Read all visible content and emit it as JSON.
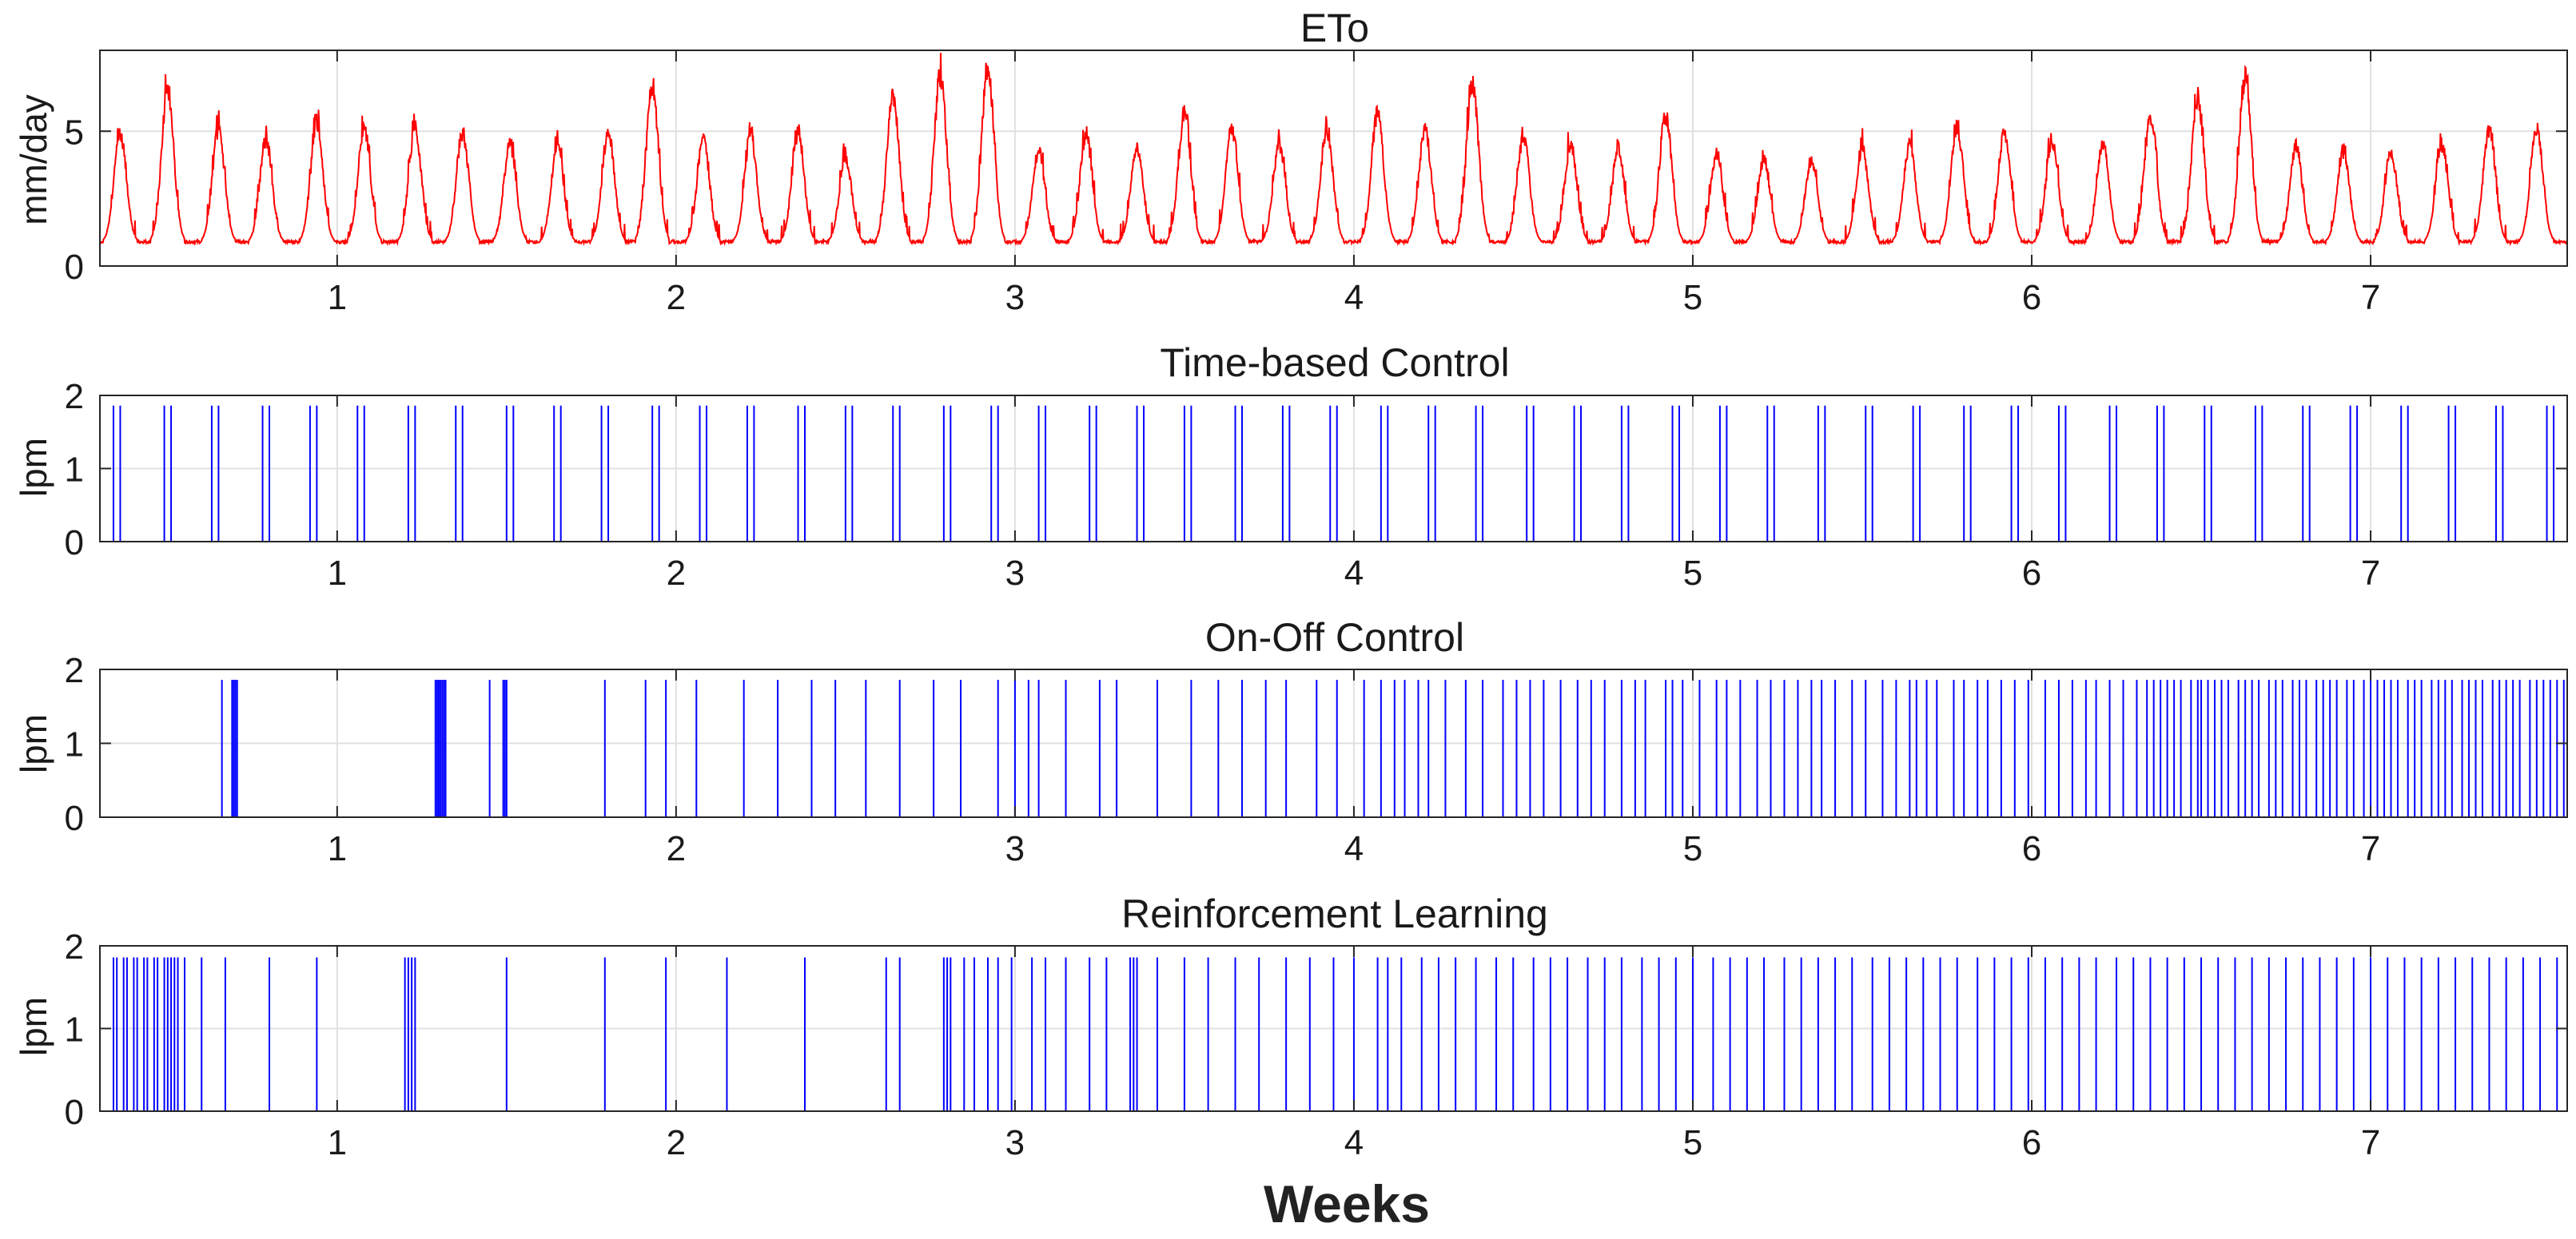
{
  "figure": {
    "xlabel": "Weeks",
    "colors": {
      "eto": "#ff0000",
      "flow": "#0000ff",
      "axis": "#262626",
      "grid": "#e0e0e0"
    }
  },
  "chart_data": [
    {
      "type": "line",
      "title": "ETo",
      "ylabel": "mm/day",
      "xlim": [
        0.3,
        7.58
      ],
      "ylim": [
        0,
        8
      ],
      "xticks": [
        "1",
        "2",
        "3",
        "4",
        "5",
        "6",
        "7"
      ],
      "yticks": [
        "0",
        "5"
      ],
      "grid": true,
      "series": [
        {
          "peak_x": [
            0.36,
            0.5,
            0.65,
            0.79,
            0.94,
            1.08,
            1.23,
            1.37,
            1.51,
            1.65,
            1.8,
            1.93,
            2.08,
            2.22,
            2.36,
            2.5,
            2.64,
            2.78,
            2.92,
            3.07,
            3.21,
            3.36,
            3.5,
            3.64,
            3.78,
            3.92,
            4.07,
            4.21,
            4.35,
            4.5,
            4.64,
            4.78,
            4.92,
            5.07,
            5.21,
            5.35,
            5.5,
            5.64,
            5.78,
            5.92,
            6.06,
            6.21,
            6.35,
            6.49,
            6.63,
            6.78,
            6.92,
            7.06,
            7.21,
            7.35,
            7.49
          ],
          "peak_y": [
            5.2,
            7.0,
            5.4,
            5.0,
            5.7,
            5.5,
            5.5,
            5.3,
            4.8,
            4.8,
            5.3,
            7.1,
            5.0,
            5.2,
            5.3,
            4.3,
            6.8,
            7.6,
            7.9,
            4.6,
            5.2,
            4.7,
            6.0,
            5.4,
            4.8,
            5.4,
            6.0,
            5.4,
            7.2,
            5.1,
            4.8,
            4.6,
            6.0,
            4.4,
            4.2,
            4.2,
            4.6,
            4.8,
            5.5,
            5.3,
            5.0,
            4.8,
            6.0,
            6.7,
            7.5,
            4.7,
            4.5,
            4.5,
            4.8,
            5.4,
            5.5
          ],
          "baseline": 0.9,
          "xs_start": 0.3,
          "xs_end": 7.58
        }
      ]
    },
    {
      "type": "line",
      "title": "Time-based Control",
      "ylabel": "lpm",
      "xlim": [
        0.3,
        7.58
      ],
      "ylim": [
        0,
        2
      ],
      "xticks": [
        "1",
        "2",
        "3",
        "4",
        "5",
        "6",
        "7"
      ],
      "yticks": [
        "0",
        "1",
        "2"
      ],
      "pulse_height": 1.86,
      "pulses_x": [
        0.34,
        0.36,
        0.49,
        0.51,
        0.63,
        0.65,
        0.78,
        0.8,
        0.92,
        0.94,
        1.06,
        1.08,
        1.21,
        1.23,
        1.35,
        1.37,
        1.5,
        1.52,
        1.64,
        1.66,
        1.78,
        1.8,
        1.93,
        1.95,
        2.07,
        2.09,
        2.21,
        2.23,
        2.36,
        2.38,
        2.5,
        2.52,
        2.64,
        2.66,
        2.79,
        2.81,
        2.93,
        2.95,
        3.07,
        3.09,
        3.22,
        3.24,
        3.36,
        3.38,
        3.5,
        3.52,
        3.65,
        3.67,
        3.79,
        3.81,
        3.93,
        3.95,
        4.08,
        4.1,
        4.22,
        4.24,
        4.36,
        4.38,
        4.51,
        4.53,
        4.65,
        4.67,
        4.79,
        4.81,
        4.94,
        4.96,
        5.08,
        5.1,
        5.22,
        5.24,
        5.37,
        5.39,
        5.51,
        5.53,
        5.65,
        5.67,
        5.8,
        5.82,
        5.94,
        5.96,
        6.08,
        6.1,
        6.23,
        6.25,
        6.37,
        6.39,
        6.51,
        6.53,
        6.66,
        6.68,
        6.8,
        6.82,
        6.94,
        6.96,
        7.09,
        7.11,
        7.23,
        7.25,
        7.37,
        7.39,
        7.52,
        7.54
      ]
    },
    {
      "type": "line",
      "title": "On-Off Control",
      "ylabel": "lpm",
      "xlim": [
        0.3,
        7.58
      ],
      "ylim": [
        0,
        2
      ],
      "xticks": [
        "1",
        "2",
        "3",
        "4",
        "5",
        "6",
        "7"
      ],
      "yticks": [
        "0",
        "1",
        "2"
      ],
      "pulse_height": 1.86,
      "pulses_x": [
        0.66,
        0.69,
        0.695,
        0.7,
        0.705,
        1.29,
        1.295,
        1.3,
        1.305,
        1.31,
        1.315,
        1.32,
        1.45,
        1.49,
        1.495,
        1.5,
        1.79,
        1.91,
        1.97,
        2.06,
        2.2,
        2.3,
        2.4,
        2.47,
        2.56,
        2.66,
        2.76,
        2.84,
        2.95,
        3.0,
        3.04,
        3.07,
        3.15,
        3.25,
        3.3,
        3.42,
        3.52,
        3.6,
        3.67,
        3.74,
        3.8,
        3.89,
        3.95,
        4.03,
        4.08,
        4.12,
        4.15,
        4.19,
        4.22,
        4.27,
        4.33,
        4.38,
        4.44,
        4.48,
        4.52,
        4.56,
        4.61,
        4.66,
        4.7,
        4.74,
        4.79,
        4.83,
        4.86,
        4.92,
        4.94,
        4.97,
        5.02,
        5.07,
        5.1,
        5.14,
        5.19,
        5.23,
        5.27,
        5.31,
        5.35,
        5.38,
        5.42,
        5.47,
        5.51,
        5.56,
        5.6,
        5.64,
        5.66,
        5.69,
        5.72,
        5.77,
        5.8,
        5.84,
        5.87,
        5.91,
        5.95,
        5.99,
        6.04,
        6.08,
        6.12,
        6.16,
        6.19,
        6.23,
        6.27,
        6.31,
        6.34,
        6.36,
        6.38,
        6.4,
        6.42,
        6.44,
        6.47,
        6.49,
        6.5,
        6.52,
        6.54,
        6.56,
        6.58,
        6.61,
        6.63,
        6.65,
        6.67,
        6.7,
        6.72,
        6.74,
        6.77,
        6.79,
        6.81,
        6.84,
        6.86,
        6.88,
        6.9,
        6.93,
        6.95,
        6.98,
        7.0,
        7.02,
        7.04,
        7.06,
        7.08,
        7.11,
        7.13,
        7.15,
        7.18,
        7.2,
        7.22,
        7.24,
        7.27,
        7.29,
        7.31,
        7.33,
        7.36,
        7.38,
        7.4,
        7.42,
        7.44,
        7.47,
        7.49,
        7.51,
        7.53,
        7.55,
        7.57
      ]
    },
    {
      "type": "line",
      "title": "Reinforcement Learning",
      "ylabel": "lpm",
      "xlim": [
        0.3,
        7.58
      ],
      "ylim": [
        0,
        2
      ],
      "xticks": [
        "1",
        "2",
        "3",
        "4",
        "5",
        "6",
        "7"
      ],
      "yticks": [
        "0",
        "1",
        "2"
      ],
      "pulse_height": 1.86,
      "pulses_x": [
        0.34,
        0.35,
        0.37,
        0.38,
        0.4,
        0.41,
        0.43,
        0.44,
        0.46,
        0.47,
        0.49,
        0.5,
        0.51,
        0.52,
        0.53,
        0.55,
        0.6,
        0.67,
        0.8,
        0.94,
        1.2,
        1.21,
        1.22,
        1.23,
        1.5,
        1.79,
        1.97,
        2.15,
        2.38,
        2.62,
        2.66,
        2.79,
        2.8,
        2.81,
        2.85,
        2.88,
        2.92,
        2.95,
        2.99,
        3.05,
        3.09,
        3.15,
        3.22,
        3.27,
        3.34,
        3.35,
        3.36,
        3.42,
        3.5,
        3.57,
        3.65,
        3.72,
        3.8,
        3.87,
        3.94,
        4.0,
        4.07,
        4.1,
        4.14,
        4.2,
        4.25,
        4.3,
        4.36,
        4.42,
        4.47,
        4.53,
        4.58,
        4.63,
        4.69,
        4.74,
        4.79,
        4.85,
        4.9,
        4.95,
        5.0,
        5.06,
        5.11,
        5.16,
        5.21,
        5.27,
        5.32,
        5.37,
        5.42,
        5.47,
        5.53,
        5.58,
        5.63,
        5.68,
        5.73,
        5.78,
        5.84,
        5.89,
        5.94,
        5.99,
        6.04,
        6.09,
        6.14,
        6.19,
        6.25,
        6.3,
        6.35,
        6.4,
        6.45,
        6.5,
        6.55,
        6.6,
        6.65,
        6.7,
        6.75,
        6.8,
        6.85,
        6.9,
        6.95,
        7.0,
        7.05,
        7.1,
        7.15,
        7.2,
        7.25,
        7.3,
        7.35,
        7.4,
        7.45,
        7.5,
        7.55
      ]
    }
  ]
}
